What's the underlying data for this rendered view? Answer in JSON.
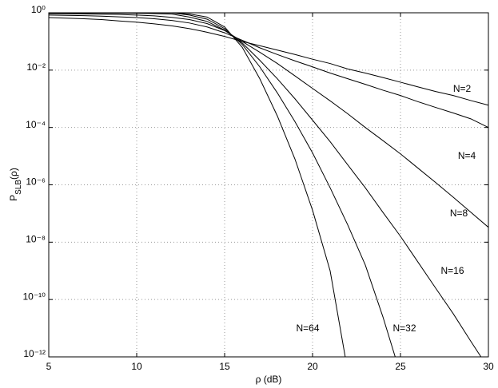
{
  "chart_data": {
    "type": "line",
    "xlabel": "ρ (dB)",
    "ylabel": [
      "P",
      "SLB",
      "(ρ)"
    ],
    "x": [
      5,
      6,
      7,
      8,
      9,
      10,
      11,
      12,
      13,
      14,
      15,
      16,
      17,
      18,
      19,
      20,
      21,
      22,
      23,
      24,
      25,
      26,
      27,
      28,
      29,
      30
    ],
    "series": [
      {
        "name": "N=2",
        "color": "#000000",
        "values": [
          0.68,
          0.65,
          0.62,
          0.58,
          0.52,
          0.47,
          0.41,
          0.35,
          0.28,
          0.21,
          0.15,
          0.1,
          0.071,
          0.05,
          0.035,
          0.024,
          0.017,
          0.011,
          0.0079,
          0.0055,
          0.0038,
          0.0026,
          0.0018,
          0.0013,
          0.00087,
          0.0006
        ]
      },
      {
        "name": "N=4",
        "color": "#000000",
        "values": [
          0.83,
          0.81,
          0.79,
          0.76,
          0.72,
          0.68,
          0.62,
          0.54,
          0.44,
          0.32,
          0.2,
          0.11,
          0.06,
          0.035,
          0.021,
          0.013,
          0.0079,
          0.005,
          0.0032,
          0.002,
          0.0013,
          0.00079,
          0.0005,
          0.00032,
          0.0002,
          0.0001
        ]
      },
      {
        "name": "N=8",
        "color": "#000000",
        "values": [
          0.93,
          0.92,
          0.91,
          0.89,
          0.87,
          0.83,
          0.78,
          0.69,
          0.58,
          0.42,
          0.24,
          0.1,
          0.042,
          0.017,
          0.0063,
          0.0023,
          0.00085,
          0.0003,
          0.0001,
          3.5e-05,
          1.2e-05,
          3.8e-06,
          1.2e-06,
          3.7e-07,
          1.1e-07,
          3.3e-08
        ]
      },
      {
        "name": "N=16",
        "color": "#000000",
        "values": [
          0.98,
          0.98,
          0.98,
          0.98,
          0.97,
          0.96,
          0.94,
          0.9,
          0.71,
          0.5,
          0.25,
          0.089,
          0.022,
          0.005,
          0.001,
          0.00018,
          3.2e-05,
          5e-06,
          7.9e-07,
          1.1e-07,
          1.6e-08,
          2e-09,
          2.5e-10,
          3.2e-11,
          3.5e-12,
          4e-13
        ]
      },
      {
        "name": "N=32",
        "color": "#000000",
        "values": [
          0.99,
          0.99,
          0.99,
          0.99,
          0.99,
          0.99,
          0.99,
          0.99,
          0.83,
          0.6,
          0.28,
          0.079,
          0.013,
          0.0016,
          0.00016,
          1.3e-05,
          7.9e-07,
          4e-08,
          1.6e-09,
          2.5e-11,
          2.5e-13,
          null,
          null,
          null,
          null,
          null
        ]
      },
      {
        "name": "N=64",
        "color": "#000000",
        "values": [
          0.99,
          0.99,
          0.99,
          0.99,
          0.99,
          0.99,
          0.99,
          0.99,
          0.91,
          0.71,
          0.32,
          0.063,
          0.005,
          0.00025,
          7.9e-06,
          1.3e-07,
          1e-09,
          3.2e-13,
          null,
          null,
          null,
          null,
          null,
          null,
          null,
          null
        ]
      }
    ],
    "xlim": [
      5,
      30
    ],
    "xticks": [
      5,
      10,
      15,
      20,
      25,
      30
    ],
    "ylim": [
      1e-12,
      1
    ],
    "log_y": true,
    "yticks": [
      {
        "value": 1,
        "label": "10⁰"
      },
      {
        "value": 0.01,
        "label": "10⁻²"
      },
      {
        "value": 0.0001,
        "label": "10⁻⁴"
      },
      {
        "value": 1e-06,
        "label": "10⁻⁶"
      },
      {
        "value": 1e-08,
        "label": "10⁻⁸"
      },
      {
        "value": 1e-10,
        "label": "10⁻¹⁰"
      },
      {
        "value": 1e-12,
        "label": "10⁻¹²"
      }
    ],
    "grid": true
  }
}
